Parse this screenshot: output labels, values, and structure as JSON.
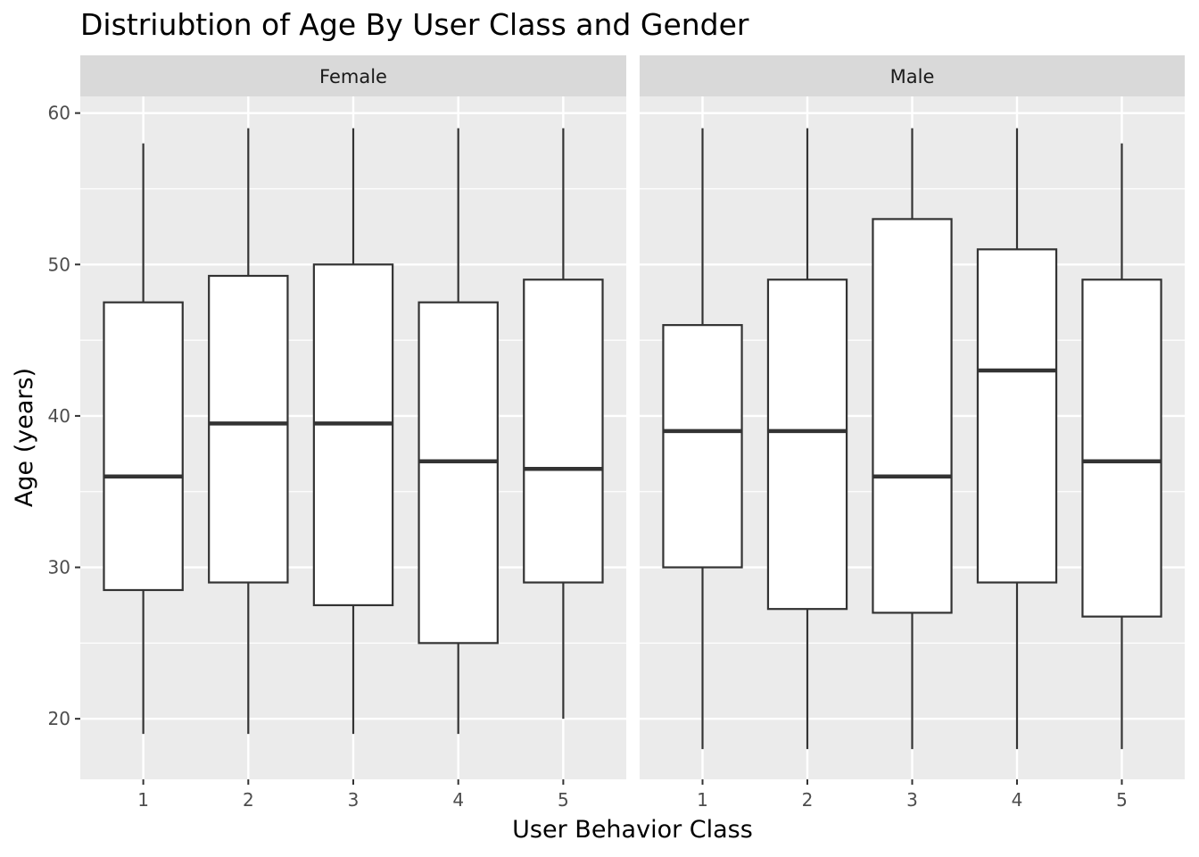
{
  "chart_data": {
    "type": "boxplot",
    "title": "Distriubtion of Age By User Class and Gender",
    "xlabel": "User Behavior Class",
    "ylabel": "Age (years)",
    "ylim": [
      16,
      61.1
    ],
    "yticks": [
      20,
      30,
      40,
      50,
      60
    ],
    "categories": [
      "1",
      "2",
      "3",
      "4",
      "5"
    ],
    "grid": true,
    "colors": {
      "panel_bg": "#ebebeb",
      "strip_bg": "#d9d9d9",
      "grid": "#ffffff",
      "box_fill": "#ffffff",
      "box_line": "#333333"
    },
    "panels": [
      {
        "label": "Female",
        "boxes": [
          {
            "category": "1",
            "min": 19,
            "q1": 28.5,
            "median": 36,
            "q3": 47.5,
            "max": 58
          },
          {
            "category": "2",
            "min": 19,
            "q1": 29,
            "median": 39.5,
            "q3": 49.25,
            "max": 59
          },
          {
            "category": "3",
            "min": 19,
            "q1": 27.5,
            "median": 39.5,
            "q3": 50,
            "max": 59
          },
          {
            "category": "4",
            "min": 19,
            "q1": 25,
            "median": 37,
            "q3": 47.5,
            "max": 59
          },
          {
            "category": "5",
            "min": 20,
            "q1": 29,
            "median": 36.5,
            "q3": 49,
            "max": 59
          }
        ]
      },
      {
        "label": "Male",
        "boxes": [
          {
            "category": "1",
            "min": 18,
            "q1": 30,
            "median": 39,
            "q3": 46,
            "max": 59
          },
          {
            "category": "2",
            "min": 18,
            "q1": 27.25,
            "median": 39,
            "q3": 49,
            "max": 59
          },
          {
            "category": "3",
            "min": 18,
            "q1": 27,
            "median": 36,
            "q3": 53,
            "max": 59
          },
          {
            "category": "4",
            "min": 18,
            "q1": 29,
            "median": 43,
            "q3": 51,
            "max": 59
          },
          {
            "category": "5",
            "min": 18,
            "q1": 26.75,
            "median": 37,
            "q3": 49,
            "max": 58
          }
        ]
      }
    ]
  }
}
